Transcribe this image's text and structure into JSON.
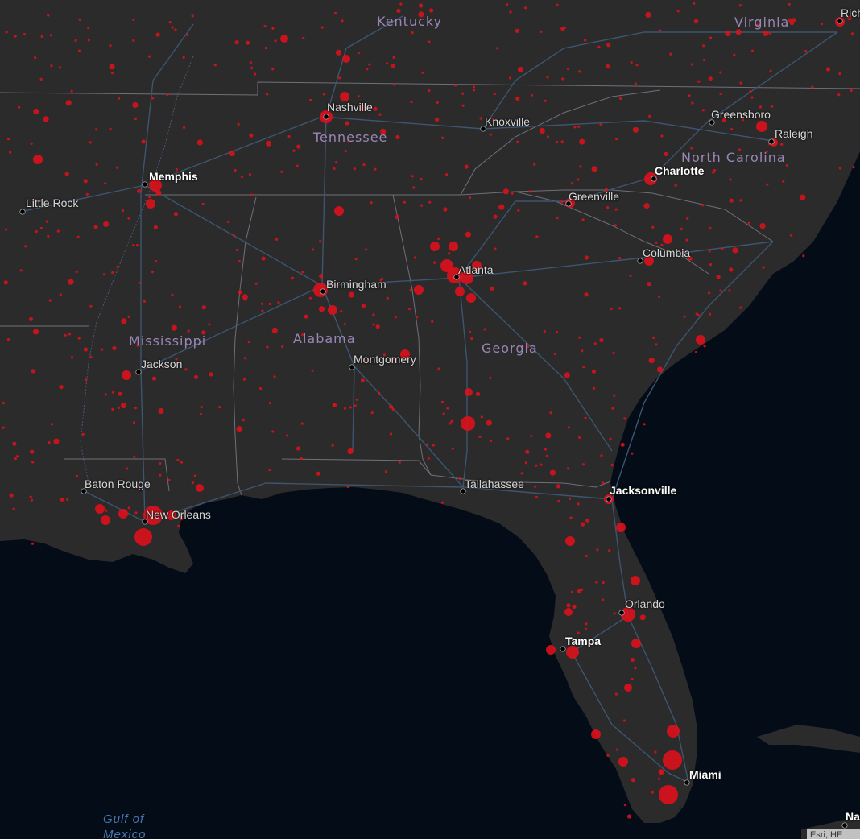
{
  "map": {
    "type": "proportional-symbol",
    "colors": {
      "water": "#040c17",
      "land": "#2b2b2b",
      "borders": "#6f6f7a",
      "roads": "#3d5570",
      "symbol": "#e0101a",
      "city_dot": "#000000",
      "state_label": "#9a86b6"
    },
    "states": [
      "Kentucky",
      "Virginia",
      "Tennessee",
      "North Carolina",
      "Mississippi",
      "Alabama",
      "Georgia"
    ],
    "cities": [
      {
        "name": "Rich",
        "major": false
      },
      {
        "name": "Nashville",
        "major": false
      },
      {
        "name": "Knoxville",
        "major": false
      },
      {
        "name": "Greensboro",
        "major": false
      },
      {
        "name": "Raleigh",
        "major": false
      },
      {
        "name": "Memphis",
        "major": true
      },
      {
        "name": "Charlotte",
        "major": true
      },
      {
        "name": "Little Rock",
        "major": false
      },
      {
        "name": "Greenville",
        "major": false
      },
      {
        "name": "Columbia",
        "major": false
      },
      {
        "name": "Atlanta",
        "major": false
      },
      {
        "name": "Birmingham",
        "major": false
      },
      {
        "name": "Jackson",
        "major": false
      },
      {
        "name": "Montgomery",
        "major": false
      },
      {
        "name": "Baton Rouge",
        "major": false
      },
      {
        "name": "New Orleans",
        "major": false
      },
      {
        "name": "Tallahassee",
        "major": false
      },
      {
        "name": "Jacksonville",
        "major": true
      },
      {
        "name": "Orlando",
        "major": false
      },
      {
        "name": "Tampa",
        "major": true
      },
      {
        "name": "Miami",
        "major": true
      },
      {
        "name": "Na",
        "major": true
      }
    ],
    "water_label": "Gulf of\nMexico",
    "attribution": "Esri, HE"
  }
}
